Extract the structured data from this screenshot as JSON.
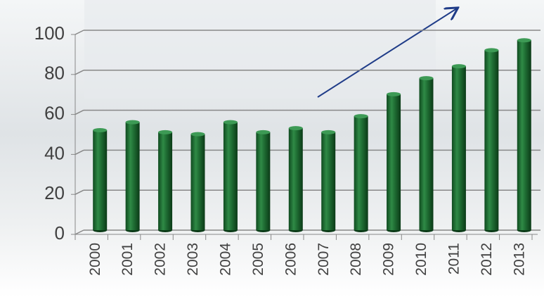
{
  "chart_data": {
    "type": "bar",
    "categories": [
      "2000",
      "2001",
      "2002",
      "2003",
      "2004",
      "2005",
      "2006",
      "2007",
      "2008",
      "2009",
      "2010",
      "2011",
      "2012",
      "2013"
    ],
    "values": [
      50,
      54,
      49,
      48,
      54,
      49,
      51,
      49,
      57,
      68,
      76,
      82,
      90,
      95
    ],
    "color": "#1e6b32",
    "ylim": [
      0,
      100
    ],
    "yticks": [
      0,
      20,
      40,
      60,
      80,
      100
    ],
    "grid": true
  }
}
